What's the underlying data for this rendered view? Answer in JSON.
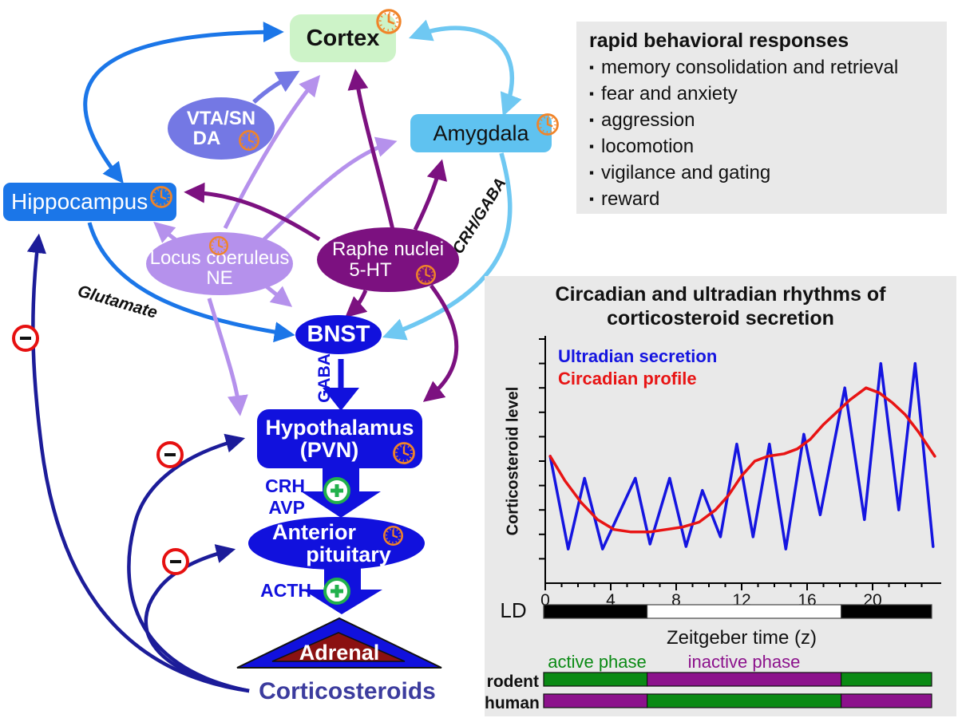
{
  "diagram": {
    "palette": {
      "node_blue": "#1111dd",
      "hippocampus_blue": "#1b76e8",
      "cortex_green": "#cdf3c8",
      "amygdala_blue": "#5fc2f0",
      "vta_purple": "#7478e4",
      "locus_purple": "#b591ec",
      "raphe_purple": "#7c1180",
      "adrenal_red": "#8b1111",
      "feedback_navy": "#1c1c99",
      "sky_arrow": "#6fc8f2",
      "clock_orange": "#f08429",
      "plus_green": "#22b14c",
      "minus_red": "#e61010",
      "corticosteroids_text": "#3c3c9e"
    },
    "nodes": {
      "cortex": {
        "label": "Cortex"
      },
      "vta": {
        "line1": "VTA/SN",
        "line2": "DA"
      },
      "amygdala": {
        "label": "Amygdala"
      },
      "hippocampus": {
        "label": "Hippocampus"
      },
      "locus_coeruleus": {
        "line1": "Locus coeruleus",
        "line2": "NE"
      },
      "raphe": {
        "line1": "Raphe nuclei",
        "line2": "5-HT"
      },
      "bnst": {
        "label": "BNST"
      },
      "hypothalamus": {
        "line1": "Hypothalamus",
        "line2": "(PVN)"
      },
      "pituitary": {
        "line1": "Anterior",
        "line2": "pituitary"
      },
      "adrenal": {
        "label": "Adrenal"
      },
      "corticosteroids": {
        "label": "Corticosteroids"
      }
    },
    "edge_labels": {
      "glutamate": "Glutamate",
      "crh_gaba": "CRH/GABA",
      "gaba": "GABA",
      "crh": "CRH",
      "avp": "AVP",
      "acth": "ACTH"
    }
  },
  "behavior_panel": {
    "title": "rapid behavioral responses",
    "bullet": "▪",
    "items": [
      "memory consolidation and retrieval",
      "fear and anxiety",
      "aggression",
      "locomotion",
      "vigilance and gating",
      "reward"
    ]
  },
  "chart_panel": {
    "title_line1": "Circadian and ultradian rhythms of",
    "title_line2": "corticosteroid secretion",
    "ylabel": "Corticosteroid level",
    "xlabel": "Zeitgeber time (z)",
    "phase_labels": {
      "active": "active phase",
      "inactive": "inactive phase"
    }
  },
  "chart_data": {
    "type": "line",
    "title": "Circadian and ultradian rhythms of corticosteroid secretion",
    "xlabel": "Zeitgeber time (z)",
    "ylabel": "Corticosteroid level",
    "xlim": [
      0,
      24
    ],
    "ylim": [
      0,
      100
    ],
    "x_ticks": [
      0,
      4,
      8,
      12,
      16,
      20
    ],
    "grid": false,
    "legend_position": "top-left",
    "series": [
      {
        "name": "Ultradian secretion",
        "color": "#1515e0",
        "points": [
          [
            0.3,
            52
          ],
          [
            1.4,
            14
          ],
          [
            2.4,
            43
          ],
          [
            3.5,
            14
          ],
          [
            5.5,
            43
          ],
          [
            6.4,
            16
          ],
          [
            7.6,
            43
          ],
          [
            8.6,
            15
          ],
          [
            9.6,
            38
          ],
          [
            10.7,
            19
          ],
          [
            11.7,
            57
          ],
          [
            12.7,
            19
          ],
          [
            13.7,
            57
          ],
          [
            14.7,
            14
          ],
          [
            15.8,
            61
          ],
          [
            16.8,
            28
          ],
          [
            18.3,
            80
          ],
          [
            19.5,
            26
          ],
          [
            20.5,
            90
          ],
          [
            21.6,
            30
          ],
          [
            22.6,
            90
          ],
          [
            23.7,
            15
          ]
        ]
      },
      {
        "name": "Circadian profile",
        "color": "#e81414",
        "points": [
          [
            0.3,
            52
          ],
          [
            1.2,
            42
          ],
          [
            2.2,
            33
          ],
          [
            3.2,
            26
          ],
          [
            4.2,
            22
          ],
          [
            5.2,
            21
          ],
          [
            6.4,
            21
          ],
          [
            7.4,
            22
          ],
          [
            8.4,
            23
          ],
          [
            9.4,
            25
          ],
          [
            10.4,
            30
          ],
          [
            11.2,
            36
          ],
          [
            12,
            44
          ],
          [
            12.8,
            50
          ],
          [
            13.6,
            52
          ],
          [
            14.6,
            53
          ],
          [
            15.4,
            55
          ],
          [
            16.2,
            59
          ],
          [
            17,
            65
          ],
          [
            17.8,
            70
          ],
          [
            18.6,
            75
          ],
          [
            19.6,
            80
          ],
          [
            20.4,
            78
          ],
          [
            21.2,
            74
          ],
          [
            22,
            69
          ],
          [
            22.8,
            62
          ],
          [
            23.8,
            52
          ]
        ]
      }
    ],
    "light_dark_bar": {
      "label": "LD",
      "segments": [
        {
          "from": 0,
          "to": 6.4,
          "phase": "dark"
        },
        {
          "from": 6.4,
          "to": 18.4,
          "phase": "light"
        },
        {
          "from": 18.4,
          "to": 24,
          "phase": "dark"
        }
      ]
    },
    "species_bars": [
      {
        "label": "rodent",
        "segments": [
          {
            "from": 0,
            "to": 6.4,
            "phase": "active"
          },
          {
            "from": 6.4,
            "to": 18.4,
            "phase": "inactive"
          },
          {
            "from": 18.4,
            "to": 24,
            "phase": "active"
          }
        ]
      },
      {
        "label": "human",
        "segments": [
          {
            "from": 0,
            "to": 6.4,
            "phase": "inactive"
          },
          {
            "from": 6.4,
            "to": 18.4,
            "phase": "active"
          },
          {
            "from": 18.4,
            "to": 24,
            "phase": "inactive"
          }
        ]
      }
    ],
    "phase_colors": {
      "active": "#0a8a14",
      "inactive": "#8c128c"
    },
    "ld_colors": {
      "dark": "#000000",
      "light": "#ffffff"
    }
  }
}
